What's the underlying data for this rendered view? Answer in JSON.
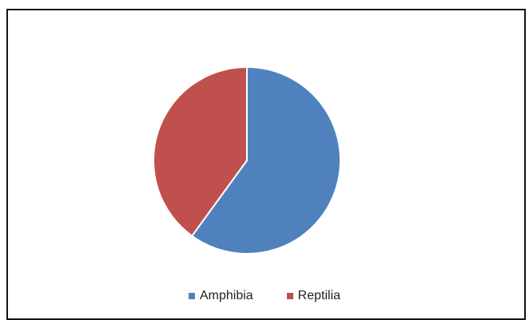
{
  "chart_data": {
    "type": "pie",
    "title": "",
    "legend_position": "bottom",
    "slices": [
      {
        "label": "Amphibia",
        "value": 60,
        "color": "#4F81BD"
      },
      {
        "label": "Reptilia",
        "value": 40,
        "color": "#C0504D"
      }
    ]
  }
}
